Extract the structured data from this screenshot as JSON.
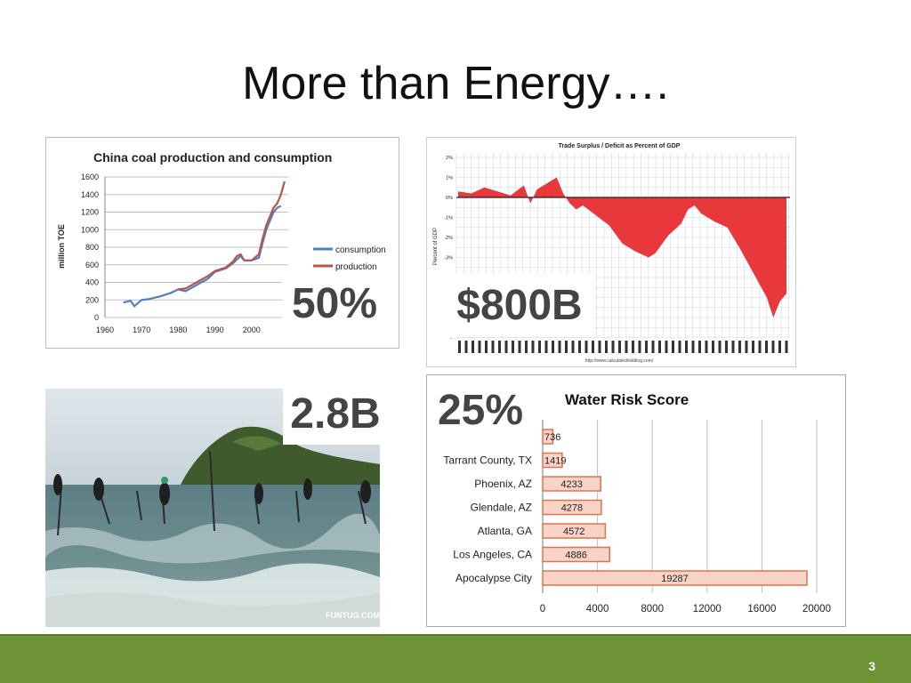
{
  "slide": {
    "title": "More than Energy….",
    "page_number": "3"
  },
  "stats": {
    "coal_pct": "50%",
    "trade_amount": "$800B",
    "people": "2.8B",
    "water_pct": "25%"
  },
  "coal_chart": {
    "title": "China coal production and consumption",
    "ylabel": "million TOE",
    "yticks": [
      "1600",
      "1400",
      "1200",
      "1000",
      "800",
      "600",
      "400",
      "200",
      "0"
    ],
    "xticks": [
      "1960",
      "1970",
      "1980",
      "1990",
      "2000"
    ],
    "legend": [
      "consumption",
      "production"
    ]
  },
  "trade_chart": {
    "title": "Trade Surplus / Deficit as Percent of GDP",
    "ylabel": "Percent of GDP",
    "yticks": [
      "2%",
      "1%",
      "0%",
      "-1%",
      "-2%",
      "-3%"
    ],
    "credit": "http://www.calculatedriskblog.com/"
  },
  "photo": {
    "watermark": "FUNTUG.COM"
  },
  "chart_data": [
    {
      "type": "line",
      "title": "China coal production and consumption",
      "ylabel": "million TOE",
      "ylim": [
        0,
        1600
      ],
      "xlim": [
        1960,
        2010
      ],
      "series": [
        {
          "name": "consumption",
          "color": "#4f81bd",
          "x": [
            1965,
            1967,
            1968,
            1970,
            1972,
            1975,
            1978,
            1980,
            1982,
            1985,
            1988,
            1990,
            1993,
            1995,
            1996,
            1997,
            1998,
            2000,
            2002,
            2003,
            2004,
            2005,
            2006,
            2007,
            2008
          ],
          "y": [
            170,
            190,
            130,
            200,
            210,
            240,
            280,
            320,
            300,
            370,
            440,
            520,
            560,
            620,
            660,
            700,
            650,
            650,
            680,
            850,
            1000,
            1100,
            1200,
            1250,
            1270
          ]
        },
        {
          "name": "production",
          "color": "#c0504d",
          "x": [
            1980,
            1982,
            1985,
            1988,
            1990,
            1993,
            1995,
            1996,
            1997,
            1998,
            2000,
            2002,
            2003,
            2004,
            2005,
            2006,
            2007,
            2008,
            2009
          ],
          "y": [
            320,
            330,
            400,
            470,
            530,
            570,
            640,
            700,
            720,
            650,
            650,
            720,
            900,
            1050,
            1150,
            1250,
            1300,
            1400,
            1550
          ]
        }
      ]
    },
    {
      "type": "bar",
      "title": "Water Risk Score",
      "categories": [
        "",
        "Tarrant County, TX",
        "Phoenix, AZ",
        "Glendale, AZ",
        "Atlanta, GA",
        "Los Angeles, CA",
        "Apocalypse City"
      ],
      "values": [
        736,
        1419,
        4233,
        4278,
        4572,
        4886,
        19287
      ],
      "value_labels": [
        "736",
        "1419",
        "4233",
        "4278",
        "4572",
        "4886",
        "19287"
      ],
      "xticks": [
        "0",
        "4000",
        "8000",
        "12000",
        "16000",
        "20000"
      ],
      "xlim": [
        0,
        20000
      ],
      "bar_color": "#f9d3c6",
      "bar_border": "#e0734e"
    }
  ]
}
